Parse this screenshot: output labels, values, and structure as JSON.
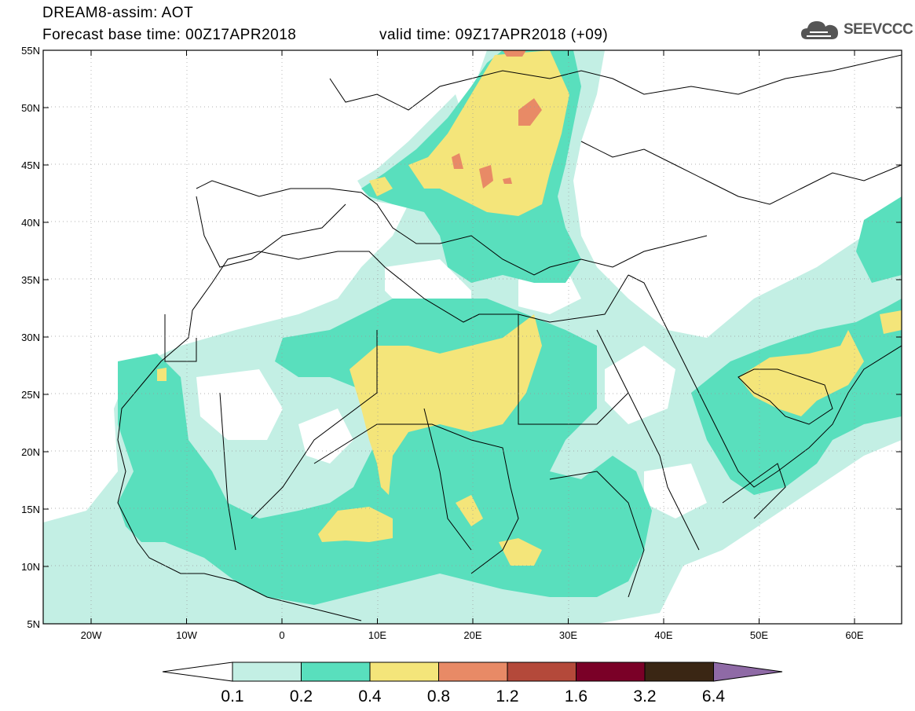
{
  "header": {
    "title_line1": "DREAM8-assim: AOT",
    "title_line2": "Forecast base time: 00Z17APR2018",
    "valid_time": "valid time: 09Z17APR2018 (+09)",
    "logo_text": "SEEVCCC",
    "logo_icon": "cloud-icon"
  },
  "axes": {
    "lat_ticks": [
      "55N",
      "50N",
      "45N",
      "40N",
      "35N",
      "30N",
      "25N",
      "20N",
      "15N",
      "10N",
      "5N"
    ],
    "lon_ticks": [
      "20W",
      "10W",
      "0",
      "10E",
      "20E",
      "30E",
      "40E",
      "50E",
      "60E"
    ]
  },
  "colorbar": {
    "labels": [
      "0.1",
      "0.2",
      "0.4",
      "0.8",
      "1.2",
      "1.6",
      "3.2",
      "6.4"
    ],
    "colors": [
      "#ffffff",
      "#c3efe4",
      "#59dfbd",
      "#f4e57a",
      "#e88a66",
      "#b4493a",
      "#7a0027",
      "#3a2614",
      "#8f6aa6"
    ]
  }
}
